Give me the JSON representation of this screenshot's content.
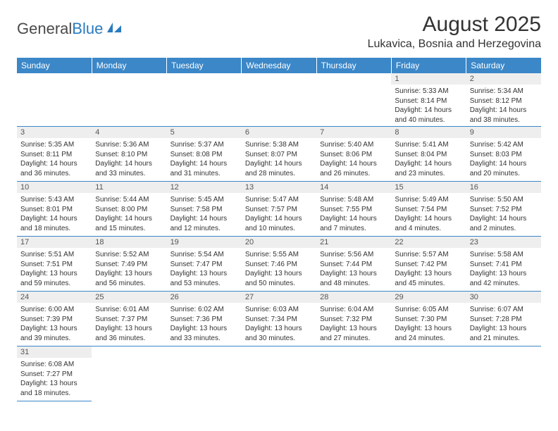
{
  "brand": {
    "part1": "General",
    "part2": "Blue"
  },
  "title": "August 2025",
  "location": "Lukavica, Bosnia and Herzegovina",
  "colors": {
    "header_bg": "#3b87c8",
    "header_text": "#ffffff",
    "daynum_bg": "#eeeeee",
    "border": "#3b87c8",
    "body_text": "#333333"
  },
  "daysOfWeek": [
    "Sunday",
    "Monday",
    "Tuesday",
    "Wednesday",
    "Thursday",
    "Friday",
    "Saturday"
  ],
  "weeks": [
    [
      null,
      null,
      null,
      null,
      null,
      {
        "n": "1",
        "sr": "5:33 AM",
        "ss": "8:14 PM",
        "dl": "14 hours and 40 minutes."
      },
      {
        "n": "2",
        "sr": "5:34 AM",
        "ss": "8:12 PM",
        "dl": "14 hours and 38 minutes."
      }
    ],
    [
      {
        "n": "3",
        "sr": "5:35 AM",
        "ss": "8:11 PM",
        "dl": "14 hours and 36 minutes."
      },
      {
        "n": "4",
        "sr": "5:36 AM",
        "ss": "8:10 PM",
        "dl": "14 hours and 33 minutes."
      },
      {
        "n": "5",
        "sr": "5:37 AM",
        "ss": "8:08 PM",
        "dl": "14 hours and 31 minutes."
      },
      {
        "n": "6",
        "sr": "5:38 AM",
        "ss": "8:07 PM",
        "dl": "14 hours and 28 minutes."
      },
      {
        "n": "7",
        "sr": "5:40 AM",
        "ss": "8:06 PM",
        "dl": "14 hours and 26 minutes."
      },
      {
        "n": "8",
        "sr": "5:41 AM",
        "ss": "8:04 PM",
        "dl": "14 hours and 23 minutes."
      },
      {
        "n": "9",
        "sr": "5:42 AM",
        "ss": "8:03 PM",
        "dl": "14 hours and 20 minutes."
      }
    ],
    [
      {
        "n": "10",
        "sr": "5:43 AM",
        "ss": "8:01 PM",
        "dl": "14 hours and 18 minutes."
      },
      {
        "n": "11",
        "sr": "5:44 AM",
        "ss": "8:00 PM",
        "dl": "14 hours and 15 minutes."
      },
      {
        "n": "12",
        "sr": "5:45 AM",
        "ss": "7:58 PM",
        "dl": "14 hours and 12 minutes."
      },
      {
        "n": "13",
        "sr": "5:47 AM",
        "ss": "7:57 PM",
        "dl": "14 hours and 10 minutes."
      },
      {
        "n": "14",
        "sr": "5:48 AM",
        "ss": "7:55 PM",
        "dl": "14 hours and 7 minutes."
      },
      {
        "n": "15",
        "sr": "5:49 AM",
        "ss": "7:54 PM",
        "dl": "14 hours and 4 minutes."
      },
      {
        "n": "16",
        "sr": "5:50 AM",
        "ss": "7:52 PM",
        "dl": "14 hours and 2 minutes."
      }
    ],
    [
      {
        "n": "17",
        "sr": "5:51 AM",
        "ss": "7:51 PM",
        "dl": "13 hours and 59 minutes."
      },
      {
        "n": "18",
        "sr": "5:52 AM",
        "ss": "7:49 PM",
        "dl": "13 hours and 56 minutes."
      },
      {
        "n": "19",
        "sr": "5:54 AM",
        "ss": "7:47 PM",
        "dl": "13 hours and 53 minutes."
      },
      {
        "n": "20",
        "sr": "5:55 AM",
        "ss": "7:46 PM",
        "dl": "13 hours and 50 minutes."
      },
      {
        "n": "21",
        "sr": "5:56 AM",
        "ss": "7:44 PM",
        "dl": "13 hours and 48 minutes."
      },
      {
        "n": "22",
        "sr": "5:57 AM",
        "ss": "7:42 PM",
        "dl": "13 hours and 45 minutes."
      },
      {
        "n": "23",
        "sr": "5:58 AM",
        "ss": "7:41 PM",
        "dl": "13 hours and 42 minutes."
      }
    ],
    [
      {
        "n": "24",
        "sr": "6:00 AM",
        "ss": "7:39 PM",
        "dl": "13 hours and 39 minutes."
      },
      {
        "n": "25",
        "sr": "6:01 AM",
        "ss": "7:37 PM",
        "dl": "13 hours and 36 minutes."
      },
      {
        "n": "26",
        "sr": "6:02 AM",
        "ss": "7:36 PM",
        "dl": "13 hours and 33 minutes."
      },
      {
        "n": "27",
        "sr": "6:03 AM",
        "ss": "7:34 PM",
        "dl": "13 hours and 30 minutes."
      },
      {
        "n": "28",
        "sr": "6:04 AM",
        "ss": "7:32 PM",
        "dl": "13 hours and 27 minutes."
      },
      {
        "n": "29",
        "sr": "6:05 AM",
        "ss": "7:30 PM",
        "dl": "13 hours and 24 minutes."
      },
      {
        "n": "30",
        "sr": "6:07 AM",
        "ss": "7:28 PM",
        "dl": "13 hours and 21 minutes."
      }
    ],
    [
      {
        "n": "31",
        "sr": "6:08 AM",
        "ss": "7:27 PM",
        "dl": "13 hours and 18 minutes."
      },
      null,
      null,
      null,
      null,
      null,
      null
    ]
  ],
  "labels": {
    "sunrise": "Sunrise:",
    "sunset": "Sunset:",
    "daylight": "Daylight:"
  }
}
